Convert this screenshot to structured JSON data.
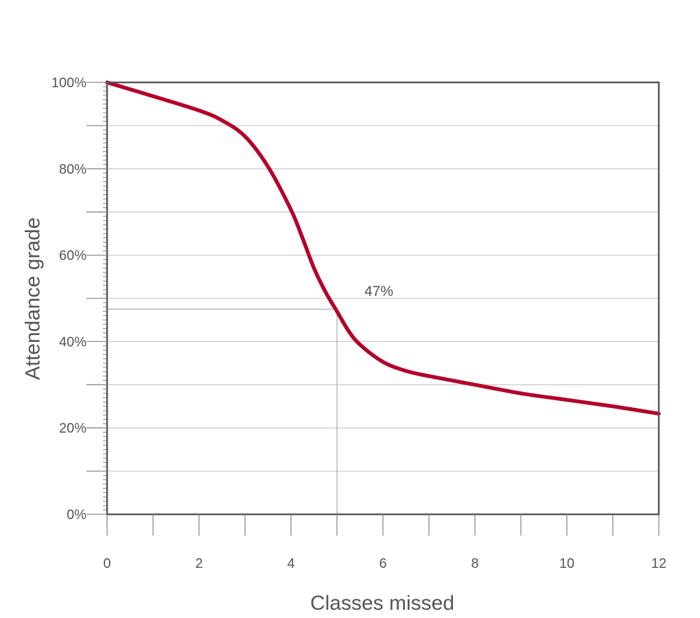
{
  "chart_data": {
    "type": "line",
    "xlabel": "Classes missed",
    "ylabel": "Attendance grade",
    "xlim": [
      0,
      12
    ],
    "ylim": [
      0,
      100
    ],
    "x_ticks": [
      0,
      2,
      4,
      6,
      8,
      10,
      12
    ],
    "y_ticks": [
      0,
      20,
      40,
      60,
      80,
      100
    ],
    "x_tick_labels": [
      "0",
      "2",
      "4",
      "6",
      "8",
      "10",
      "12"
    ],
    "y_tick_labels": [
      "0%",
      "20%",
      "40%",
      "60%",
      "80%",
      "100%"
    ],
    "grid": true,
    "series": [
      {
        "color": "#b5002a",
        "x": [
          0,
          1,
          2,
          2.5,
          3,
          3.5,
          4,
          4.25,
          4.5,
          4.75,
          5,
          5.25,
          5.5,
          6,
          6.5,
          7,
          8,
          9,
          10,
          11,
          12
        ],
        "y": [
          100,
          96.8,
          93.5,
          91.2,
          87.5,
          80.5,
          70.5,
          64,
          57,
          51.5,
          47,
          42.5,
          39.3,
          35.3,
          33.2,
          32,
          30,
          28,
          26.5,
          25,
          23.3
        ]
      }
    ],
    "annotation": {
      "x": 5,
      "y": 47.5,
      "text": "47%"
    }
  }
}
